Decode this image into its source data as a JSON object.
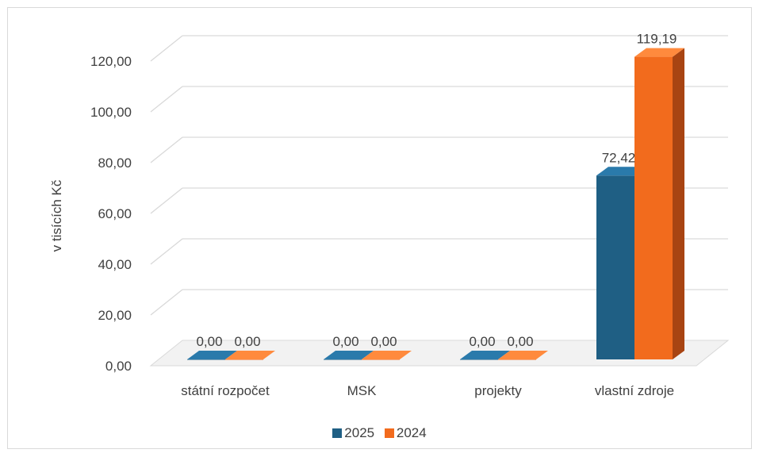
{
  "chart_data": {
    "type": "bar",
    "title": "",
    "xlabel": "",
    "ylabel": "v tisících Kč",
    "ylim": [
      0,
      120
    ],
    "yticks": [
      "0,00",
      "20,00",
      "40,00",
      "60,00",
      "80,00",
      "100,00",
      "120,00"
    ],
    "categories": [
      "státní rozpočet",
      "MSK",
      "projekty",
      "vlastní zdroje"
    ],
    "series": [
      {
        "name": "2025",
        "values": [
          0,
          0,
          0,
          72.42
        ],
        "labels": [
          "0,00",
          "0,00",
          "0,00",
          "72,42"
        ],
        "color": "#1f5f84"
      },
      {
        "name": "2024",
        "values": [
          0,
          0,
          0,
          119.19
        ],
        "labels": [
          "0,00",
          "0,00",
          "0,00",
          "119,19"
        ],
        "color": "#f26b1d"
      }
    ],
    "grid": true,
    "legend": "bottom"
  }
}
